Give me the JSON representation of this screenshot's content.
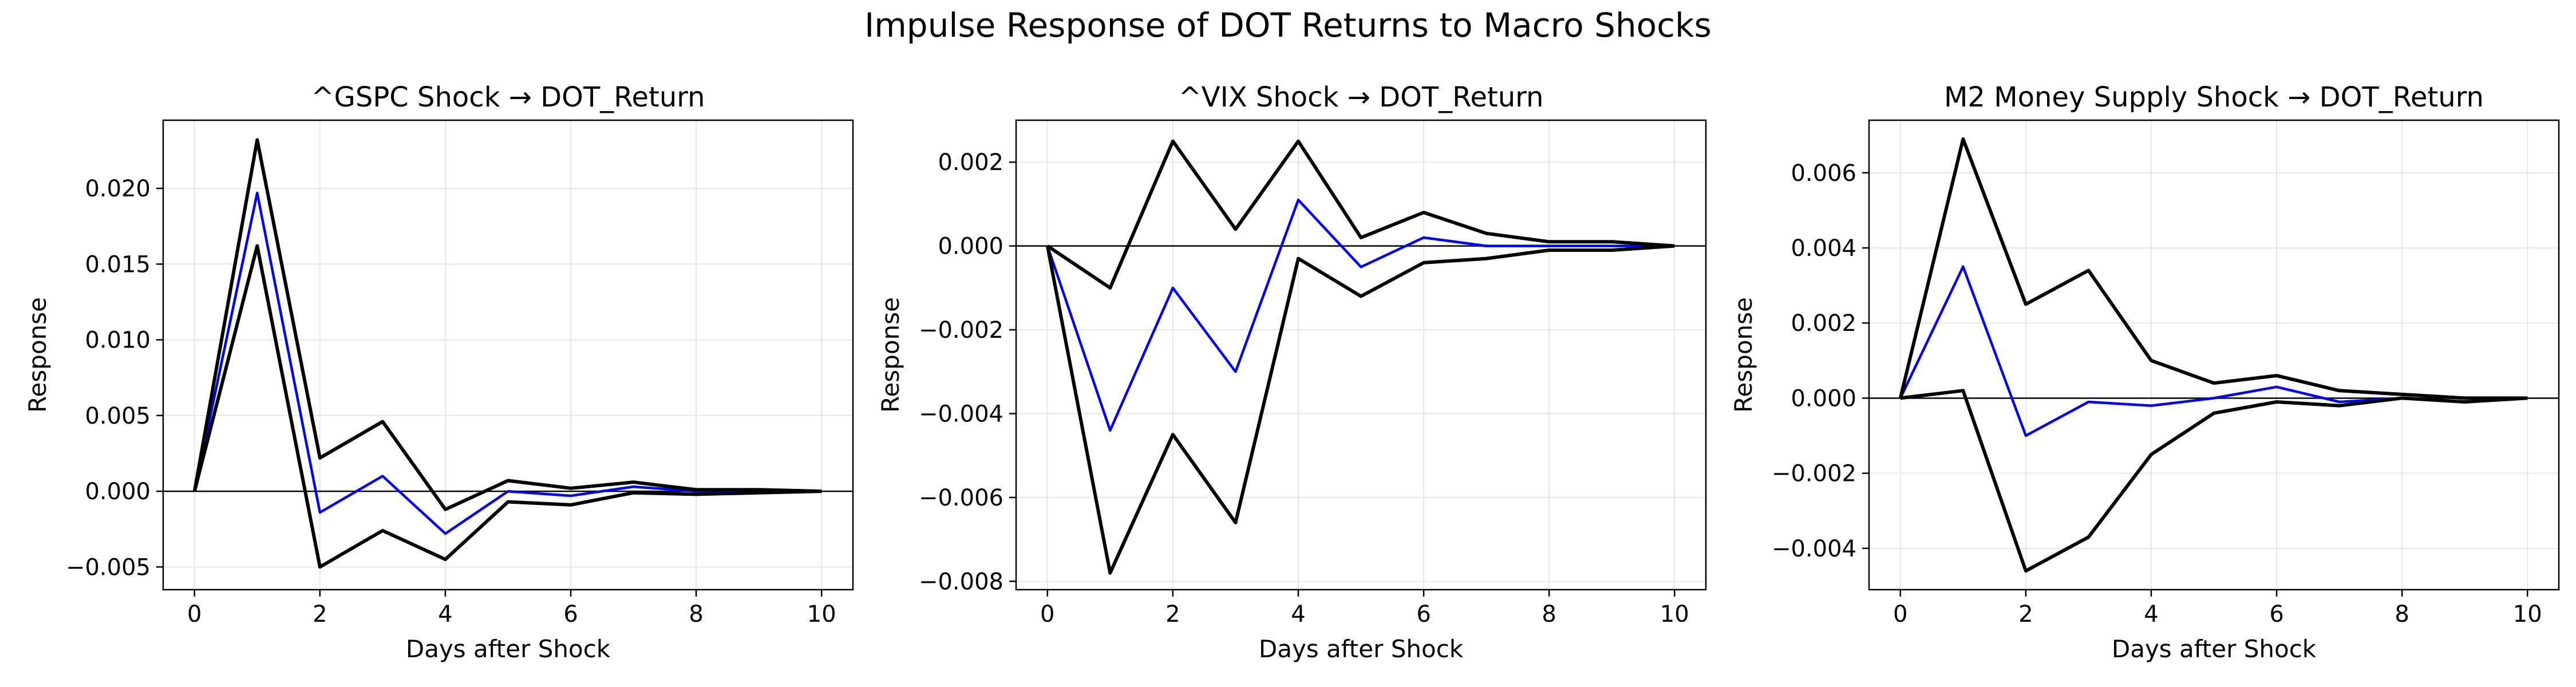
{
  "figure": {
    "title": "Impulse Response of DOT Returns to Macro Shocks"
  },
  "style": {
    "response_color": "#0000ff",
    "band_color": "#000000",
    "zero_line_color": "#000000",
    "grid_color": "#e6e6e6"
  },
  "chart_data": [
    {
      "type": "line",
      "title": "^GSPC Shock → DOT_Return",
      "xlabel": "Days after Shock",
      "ylabel": "Response",
      "xlim": [
        -0.5,
        10.5
      ],
      "ylim": [
        -0.0065,
        0.0245
      ],
      "x": [
        0,
        1,
        2,
        3,
        4,
        5,
        6,
        7,
        8,
        9,
        10
      ],
      "xticks": [
        0,
        2,
        4,
        6,
        8,
        10
      ],
      "xtick_labels": [
        "0",
        "2",
        "4",
        "6",
        "8",
        "10"
      ],
      "yticks": [
        -0.005,
        0,
        0.005,
        0.01,
        0.015,
        0.02
      ],
      "ytick_labels": [
        "−0.005",
        "0.000",
        "0.005",
        "0.010",
        "0.015",
        "0.020"
      ],
      "grid": true,
      "zero_line": true,
      "series": [
        {
          "role": "response",
          "values": [
            0,
            0.0197,
            -0.0014,
            0.001,
            -0.0028,
            0.0,
            -0.0003,
            0.0003,
            0.0,
            0.0,
            0.0
          ]
        },
        {
          "role": "upper",
          "values": [
            0,
            0.0232,
            0.0022,
            0.0046,
            -0.0012,
            0.0007,
            0.0002,
            0.0006,
            0.0001,
            0.0001,
            0.0
          ]
        },
        {
          "role": "lower",
          "values": [
            0,
            0.0162,
            -0.005,
            -0.0026,
            -0.0045,
            -0.0007,
            -0.0009,
            -0.0001,
            -0.0002,
            -0.0001,
            0.0
          ]
        }
      ]
    },
    {
      "type": "line",
      "title": "^VIX Shock → DOT_Return",
      "xlabel": "Days after Shock",
      "ylabel": "Response",
      "xlim": [
        -0.5,
        10.5
      ],
      "ylim": [
        -0.0082,
        0.003
      ],
      "x": [
        0,
        1,
        2,
        3,
        4,
        5,
        6,
        7,
        8,
        9,
        10
      ],
      "xticks": [
        0,
        2,
        4,
        6,
        8,
        10
      ],
      "xtick_labels": [
        "0",
        "2",
        "4",
        "6",
        "8",
        "10"
      ],
      "yticks": [
        -0.008,
        -0.006,
        -0.004,
        -0.002,
        0,
        0.002
      ],
      "ytick_labels": [
        "−0.008",
        "−0.006",
        "−0.004",
        "−0.002",
        "0.000",
        "0.002"
      ],
      "grid": true,
      "zero_line": true,
      "series": [
        {
          "role": "response",
          "values": [
            0,
            -0.0044,
            -0.001,
            -0.003,
            0.0011,
            -0.0005,
            0.0002,
            0.0,
            0.0,
            0.0,
            0.0
          ]
        },
        {
          "role": "upper",
          "values": [
            0,
            -0.001,
            0.0025,
            0.0004,
            0.0025,
            0.0002,
            0.0008,
            0.0003,
            0.0001,
            0.0001,
            0.0
          ]
        },
        {
          "role": "lower",
          "values": [
            0,
            -0.0078,
            -0.0045,
            -0.0066,
            -0.0003,
            -0.0012,
            -0.0004,
            -0.0003,
            -0.0001,
            -0.0001,
            0.0
          ]
        }
      ]
    },
    {
      "type": "line",
      "title": "M2 Money Supply Shock → DOT_Return",
      "xlabel": "Days after Shock",
      "ylabel": "Response",
      "xlim": [
        -0.5,
        10.5
      ],
      "ylim": [
        -0.0051,
        0.0074
      ],
      "x": [
        0,
        1,
        2,
        3,
        4,
        5,
        6,
        7,
        8,
        9,
        10
      ],
      "xticks": [
        0,
        2,
        4,
        6,
        8,
        10
      ],
      "xtick_labels": [
        "0",
        "2",
        "4",
        "6",
        "8",
        "10"
      ],
      "yticks": [
        -0.004,
        -0.002,
        0,
        0.002,
        0.004,
        0.006
      ],
      "ytick_labels": [
        "−0.004",
        "−0.002",
        "0.000",
        "0.002",
        "0.004",
        "0.006"
      ],
      "grid": true,
      "zero_line": true,
      "series": [
        {
          "role": "response",
          "values": [
            0,
            0.0035,
            -0.001,
            -0.0001,
            -0.0002,
            0.0,
            0.0003,
            -0.0001,
            0.0,
            -0.0001,
            0.0
          ]
        },
        {
          "role": "upper",
          "values": [
            0,
            0.0069,
            0.0025,
            0.0034,
            0.001,
            0.0004,
            0.0006,
            0.0002,
            0.0001,
            0.0,
            0.0
          ]
        },
        {
          "role": "lower",
          "values": [
            0,
            0.0002,
            -0.0046,
            -0.0037,
            -0.0015,
            -0.0004,
            -0.0001,
            -0.0002,
            0.0,
            -0.0001,
            0.0
          ]
        }
      ]
    }
  ]
}
